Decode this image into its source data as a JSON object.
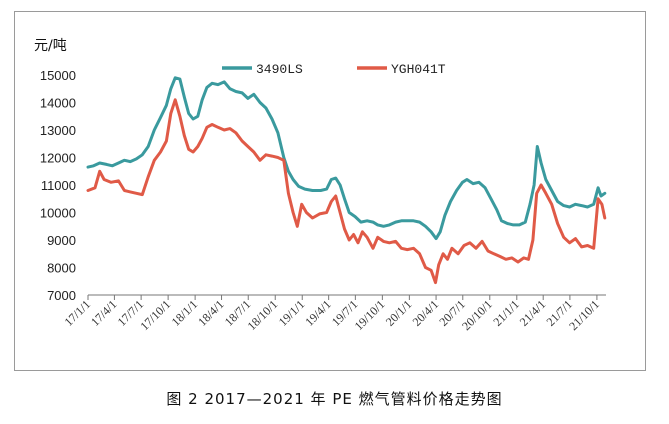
{
  "caption": "图 2  2017—2021 年 PE 燃气管料价格走势图",
  "chart_data": {
    "type": "line",
    "title": "",
    "ylabel": "元/吨",
    "xlabel": "",
    "ylim": [
      7000,
      15000
    ],
    "yticks": [
      7000,
      8000,
      9000,
      10000,
      11000,
      12000,
      13000,
      14000,
      15000
    ],
    "xlim": [
      "2017-01-01",
      "2021-11-01"
    ],
    "x_tick_labels": [
      "17/1/1",
      "17/4/1",
      "17/7/1",
      "17/10/1",
      "18/1/1",
      "18/4/1",
      "18/7/1",
      "18/10/1",
      "19/1/1",
      "19/4/1",
      "19/7/1",
      "19/10/1",
      "20/1/1",
      "20/4/1",
      "20/7/1",
      "20/10/1",
      "21/1/1",
      "21/4/1",
      "21/7/1",
      "21/10/1"
    ],
    "legend_position": "top",
    "grid": false,
    "series": [
      {
        "name": "3490LS",
        "color": "#3a9a9e",
        "points": [
          [
            "2017-01-01",
            11650
          ],
          [
            "2017-01-20",
            11700
          ],
          [
            "2017-02-10",
            11800
          ],
          [
            "2017-03-05",
            11750
          ],
          [
            "2017-03-25",
            11700
          ],
          [
            "2017-04-15",
            11800
          ],
          [
            "2017-05-05",
            11900
          ],
          [
            "2017-05-25",
            11850
          ],
          [
            "2017-06-15",
            11950
          ],
          [
            "2017-07-05",
            12100
          ],
          [
            "2017-07-25",
            12400
          ],
          [
            "2017-08-15",
            13000
          ],
          [
            "2017-09-05",
            13450
          ],
          [
            "2017-09-25",
            13900
          ],
          [
            "2017-10-10",
            14500
          ],
          [
            "2017-10-25",
            14900
          ],
          [
            "2017-11-10",
            14850
          ],
          [
            "2017-11-25",
            14200
          ],
          [
            "2017-12-10",
            13600
          ],
          [
            "2017-12-25",
            13400
          ],
          [
            "2018-01-10",
            13500
          ],
          [
            "2018-01-25",
            14100
          ],
          [
            "2018-02-10",
            14550
          ],
          [
            "2018-02-28",
            14700
          ],
          [
            "2018-03-20",
            14650
          ],
          [
            "2018-04-10",
            14750
          ],
          [
            "2018-04-30",
            14500
          ],
          [
            "2018-05-20",
            14400
          ],
          [
            "2018-06-10",
            14350
          ],
          [
            "2018-06-30",
            14150
          ],
          [
            "2018-07-20",
            14300
          ],
          [
            "2018-08-10",
            14000
          ],
          [
            "2018-08-30",
            13800
          ],
          [
            "2018-09-20",
            13400
          ],
          [
            "2018-10-10",
            12900
          ],
          [
            "2018-10-30",
            12000
          ],
          [
            "2018-11-15",
            11500
          ],
          [
            "2018-12-01",
            11200
          ],
          [
            "2018-12-20",
            10950
          ],
          [
            "2019-01-10",
            10850
          ],
          [
            "2019-02-05",
            10800
          ],
          [
            "2019-03-05",
            10800
          ],
          [
            "2019-03-25",
            10850
          ],
          [
            "2019-04-10",
            11200
          ],
          [
            "2019-04-25",
            11250
          ],
          [
            "2019-05-10",
            11000
          ],
          [
            "2019-05-25",
            10500
          ],
          [
            "2019-06-10",
            10000
          ],
          [
            "2019-06-30",
            9850
          ],
          [
            "2019-07-20",
            9650
          ],
          [
            "2019-08-10",
            9700
          ],
          [
            "2019-08-30",
            9650
          ],
          [
            "2019-09-15",
            9550
          ],
          [
            "2019-10-05",
            9500
          ],
          [
            "2019-10-25",
            9550
          ],
          [
            "2019-11-15",
            9650
          ],
          [
            "2019-12-05",
            9700
          ],
          [
            "2019-12-25",
            9700
          ],
          [
            "2020-01-15",
            9700
          ],
          [
            "2020-02-05",
            9650
          ],
          [
            "2020-02-25",
            9500
          ],
          [
            "2020-03-15",
            9300
          ],
          [
            "2020-04-01",
            9050
          ],
          [
            "2020-04-15",
            9300
          ],
          [
            "2020-05-01",
            9900
          ],
          [
            "2020-05-20",
            10400
          ],
          [
            "2020-06-10",
            10800
          ],
          [
            "2020-06-30",
            11100
          ],
          [
            "2020-07-15",
            11200
          ],
          [
            "2020-08-05",
            11050
          ],
          [
            "2020-08-25",
            11100
          ],
          [
            "2020-09-15",
            10900
          ],
          [
            "2020-10-05",
            10500
          ],
          [
            "2020-10-25",
            10100
          ],
          [
            "2020-11-10",
            9700
          ],
          [
            "2020-11-30",
            9600
          ],
          [
            "2020-12-20",
            9550
          ],
          [
            "2021-01-10",
            9550
          ],
          [
            "2021-01-30",
            9650
          ],
          [
            "2021-02-15",
            10300
          ],
          [
            "2021-03-01",
            11000
          ],
          [
            "2021-03-12",
            12400
          ],
          [
            "2021-03-25",
            11800
          ],
          [
            "2021-04-10",
            11200
          ],
          [
            "2021-04-30",
            10800
          ],
          [
            "2021-05-20",
            10400
          ],
          [
            "2021-06-10",
            10250
          ],
          [
            "2021-06-30",
            10200
          ],
          [
            "2021-07-20",
            10300
          ],
          [
            "2021-08-10",
            10250
          ],
          [
            "2021-08-30",
            10200
          ],
          [
            "2021-09-20",
            10300
          ],
          [
            "2021-10-05",
            10900
          ],
          [
            "2021-10-15",
            10600
          ],
          [
            "2021-10-28",
            10700
          ]
        ]
      },
      {
        "name": "YGH041T",
        "color": "#e05a47",
        "points": [
          [
            "2017-01-01",
            10800
          ],
          [
            "2017-01-25",
            10900
          ],
          [
            "2017-02-10",
            11500
          ],
          [
            "2017-02-25",
            11200
          ],
          [
            "2017-03-20",
            11100
          ],
          [
            "2017-04-15",
            11150
          ],
          [
            "2017-05-05",
            10800
          ],
          [
            "2017-05-25",
            10750
          ],
          [
            "2017-06-15",
            10700
          ],
          [
            "2017-07-05",
            10650
          ],
          [
            "2017-07-25",
            11300
          ],
          [
            "2017-08-15",
            11900
          ],
          [
            "2017-09-05",
            12200
          ],
          [
            "2017-09-25",
            12600
          ],
          [
            "2017-10-10",
            13600
          ],
          [
            "2017-10-25",
            14100
          ],
          [
            "2017-11-10",
            13500
          ],
          [
            "2017-11-25",
            12800
          ],
          [
            "2017-12-10",
            12300
          ],
          [
            "2017-12-25",
            12200
          ],
          [
            "2018-01-10",
            12400
          ],
          [
            "2018-01-25",
            12700
          ],
          [
            "2018-02-10",
            13100
          ],
          [
            "2018-02-28",
            13200
          ],
          [
            "2018-03-20",
            13100
          ],
          [
            "2018-04-10",
            13000
          ],
          [
            "2018-04-30",
            13050
          ],
          [
            "2018-05-20",
            12900
          ],
          [
            "2018-06-10",
            12600
          ],
          [
            "2018-06-30",
            12400
          ],
          [
            "2018-07-20",
            12200
          ],
          [
            "2018-08-10",
            11900
          ],
          [
            "2018-08-30",
            12100
          ],
          [
            "2018-09-20",
            12050
          ],
          [
            "2018-10-10",
            12000
          ],
          [
            "2018-10-30",
            11900
          ],
          [
            "2018-11-15",
            10700
          ],
          [
            "2018-12-01",
            10000
          ],
          [
            "2018-12-15",
            9500
          ],
          [
            "2018-12-30",
            10300
          ],
          [
            "2019-01-15",
            10000
          ],
          [
            "2019-02-05",
            9800
          ],
          [
            "2019-03-01",
            9950
          ],
          [
            "2019-03-25",
            10000
          ],
          [
            "2019-04-10",
            10400
          ],
          [
            "2019-04-25",
            10600
          ],
          [
            "2019-05-10",
            10000
          ],
          [
            "2019-05-25",
            9400
          ],
          [
            "2019-06-10",
            9000
          ],
          [
            "2019-06-25",
            9200
          ],
          [
            "2019-07-10",
            8900
          ],
          [
            "2019-07-25",
            9300
          ],
          [
            "2019-08-10",
            9100
          ],
          [
            "2019-08-30",
            8700
          ],
          [
            "2019-09-15",
            9100
          ],
          [
            "2019-10-05",
            8950
          ],
          [
            "2019-10-25",
            8900
          ],
          [
            "2019-11-15",
            8950
          ],
          [
            "2019-12-05",
            8700
          ],
          [
            "2019-12-25",
            8650
          ],
          [
            "2020-01-15",
            8700
          ],
          [
            "2020-02-05",
            8500
          ],
          [
            "2020-02-25",
            8000
          ],
          [
            "2020-03-15",
            7900
          ],
          [
            "2020-03-30",
            7450
          ],
          [
            "2020-04-10",
            8100
          ],
          [
            "2020-04-25",
            8500
          ],
          [
            "2020-05-10",
            8300
          ],
          [
            "2020-05-25",
            8700
          ],
          [
            "2020-06-15",
            8500
          ],
          [
            "2020-07-05",
            8800
          ],
          [
            "2020-07-25",
            8900
          ],
          [
            "2020-08-15",
            8700
          ],
          [
            "2020-09-05",
            8950
          ],
          [
            "2020-09-25",
            8600
          ],
          [
            "2020-10-15",
            8500
          ],
          [
            "2020-11-05",
            8400
          ],
          [
            "2020-11-25",
            8300
          ],
          [
            "2020-12-15",
            8350
          ],
          [
            "2021-01-05",
            8200
          ],
          [
            "2021-01-25",
            8350
          ],
          [
            "2021-02-10",
            8300
          ],
          [
            "2021-02-25",
            9000
          ],
          [
            "2021-03-10",
            10700
          ],
          [
            "2021-03-25",
            11000
          ],
          [
            "2021-04-10",
            10700
          ],
          [
            "2021-04-30",
            10300
          ],
          [
            "2021-05-20",
            9600
          ],
          [
            "2021-06-10",
            9100
          ],
          [
            "2021-06-30",
            8900
          ],
          [
            "2021-07-20",
            9050
          ],
          [
            "2021-08-10",
            8750
          ],
          [
            "2021-08-30",
            8800
          ],
          [
            "2021-09-20",
            8700
          ],
          [
            "2021-10-05",
            10500
          ],
          [
            "2021-10-18",
            10300
          ],
          [
            "2021-10-28",
            9800
          ]
        ]
      }
    ]
  }
}
